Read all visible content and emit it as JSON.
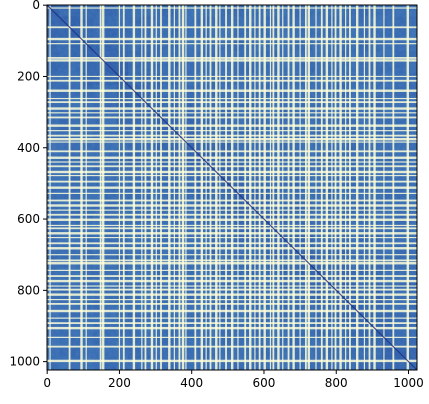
{
  "chart_data": {
    "type": "heatmap",
    "title": "",
    "xlabel": "",
    "ylabel": "",
    "xlim": [
      0,
      1023
    ],
    "ylim": [
      1023,
      0
    ],
    "matrix_size": 1024,
    "x_ticks": [
      0,
      200,
      400,
      600,
      800,
      1000
    ],
    "y_ticks": [
      0,
      200,
      400,
      600,
      800,
      1000
    ],
    "colormap": "YlGnBu",
    "colors": {
      "low": "#253494",
      "mid": "#2c7fb8",
      "high": "#ffffd9"
    },
    "bright_line_indices": [
      8,
      62,
      95,
      108,
      148,
      155,
      200,
      212,
      240,
      262,
      272,
      290,
      302,
      315,
      338,
      352,
      366,
      376,
      384,
      410,
      428,
      440,
      452,
      468,
      478,
      495,
      512,
      528,
      548,
      562,
      575,
      588,
      602,
      618,
      626,
      640,
      652,
      668,
      682,
      700,
      716,
      724,
      744,
      760,
      774,
      788,
      798,
      812,
      826,
      838,
      858,
      878,
      892,
      906,
      932,
      958,
      998
    ],
    "diagonal": "dark main diagonal",
    "legend": "none",
    "grid": false
  }
}
